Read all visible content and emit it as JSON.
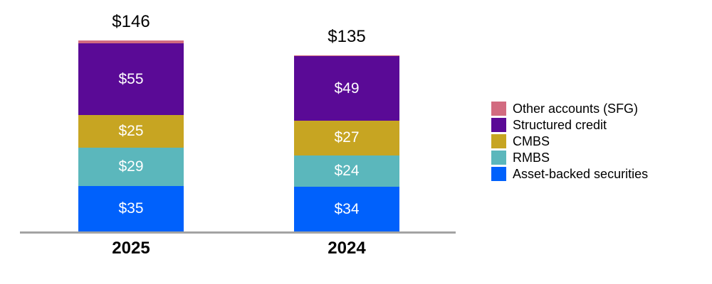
{
  "chart_data": {
    "type": "bar",
    "variant": "stacked-vertical",
    "title": "",
    "xlabel": "",
    "ylabel": "",
    "categories": [
      "2025",
      "2024"
    ],
    "total_labels": [
      "$146",
      "$135"
    ],
    "total_values": [
      146,
      135
    ],
    "series": [
      {
        "name": "Asset-backed securities",
        "color": "#0061fc",
        "values": [
          35,
          34
        ],
        "value_labels": [
          "$35",
          "$34"
        ]
      },
      {
        "name": "RMBS",
        "color": "#5bb7bc",
        "values": [
          29,
          24
        ],
        "value_labels": [
          "$29",
          "$24"
        ]
      },
      {
        "name": "CMBS",
        "color": "#c7a522",
        "values": [
          25,
          27
        ],
        "value_labels": [
          "$25",
          "$27"
        ]
      },
      {
        "name": "Structured credit",
        "color": "#5a0a96",
        "values": [
          55,
          49
        ],
        "value_labels": [
          "$55",
          "$49"
        ]
      },
      {
        "name": "Other accounts (SFG)",
        "color": "#d26b80",
        "values": [
          2,
          1
        ],
        "value_labels": [
          "",
          ""
        ]
      }
    ],
    "legend": {
      "position": "right",
      "entries": [
        "Other accounts (SFG)",
        "Structured credit",
        "CMBS",
        "RMBS",
        "Asset-backed securities"
      ]
    },
    "axis": {
      "baseline": true,
      "baseline_color": "#a3a3a3",
      "gridlines": false,
      "y_ticks_visible": false
    },
    "ylim": [
      0,
      160
    ]
  },
  "colors": {
    "background": "#ffffff",
    "bar_value_text": "#ffffff",
    "total_text": "#000000",
    "axis_label_text": "#000000"
  }
}
